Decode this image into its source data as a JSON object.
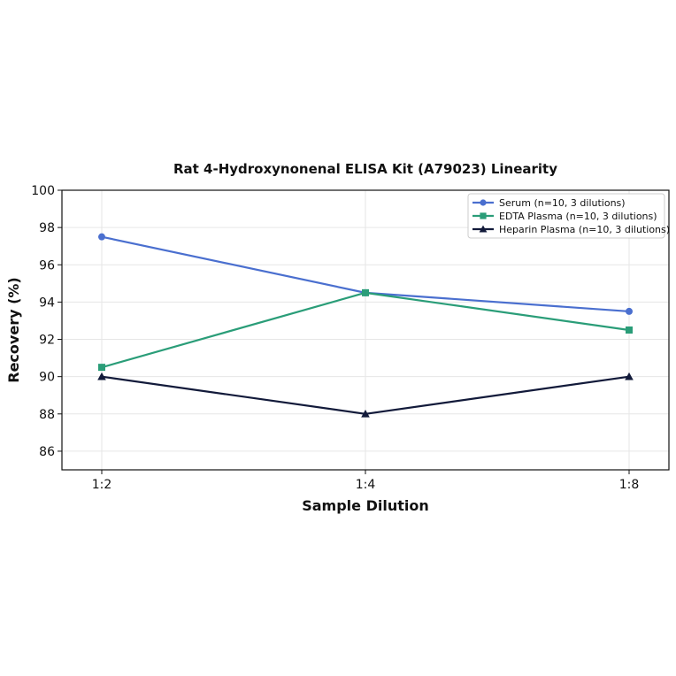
{
  "chart_data": {
    "type": "line",
    "title": "Rat 4-Hydroxynonenal ELISA Kit (A79023) Linearity",
    "xlabel": "Sample Dilution",
    "ylabel": "Recovery (%)",
    "categories": [
      "1:2",
      "1:4",
      "1:8"
    ],
    "ylim": [
      85,
      100
    ],
    "yticks": [
      86,
      88,
      90,
      92,
      94,
      96,
      98,
      100
    ],
    "grid": true,
    "legend_position": "top-right",
    "series": [
      {
        "name": "Serum (n=10, 3 dilutions)",
        "values": [
          97.5,
          94.5,
          93.5
        ],
        "color": "#4a6fcf",
        "marker": "circle"
      },
      {
        "name": "EDTA Plasma (n=10, 3 dilutions)",
        "values": [
          90.5,
          94.5,
          92.5
        ],
        "color": "#2a9d78",
        "marker": "square"
      },
      {
        "name": "Heparin Plasma (n=10, 3 dilutions)",
        "values": [
          90,
          88,
          90
        ],
        "color": "#121a3a",
        "marker": "triangle"
      }
    ]
  }
}
